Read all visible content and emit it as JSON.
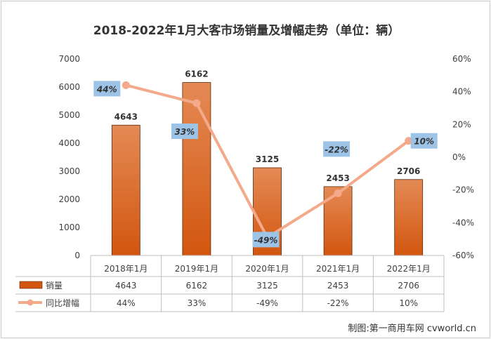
{
  "chart_data": {
    "type": "bar+line",
    "title": "2018-2022年1月大客市场销量及增幅走势（单位：辆）",
    "categories": [
      "2018年1月",
      "2019年1月",
      "2020年1月",
      "2021年1月",
      "2022年1月"
    ],
    "series": [
      {
        "name": "销量",
        "type": "bar",
        "axis": "left",
        "values": [
          4643,
          6162,
          3125,
          2453,
          2706
        ],
        "labels": [
          "4643",
          "6162",
          "3125",
          "2453",
          "2706"
        ],
        "color": "#D9601C"
      },
      {
        "name": "同比增幅",
        "type": "line",
        "axis": "right",
        "values": [
          44,
          33,
          -49,
          -22,
          10
        ],
        "labels": [
          "44%",
          "33%",
          "-49%",
          "-22%",
          "10%"
        ],
        "color": "#F4A98A"
      }
    ],
    "yleft": {
      "min": 0,
      "max": 7000,
      "ticks": [
        "0",
        "1000",
        "2000",
        "3000",
        "4000",
        "5000",
        "6000",
        "7000"
      ]
    },
    "yright": {
      "min": -60,
      "max": 60,
      "ticks": [
        "-60%",
        "-40%",
        "-20%",
        "0%",
        "20%",
        "40%",
        "60%"
      ]
    },
    "grid": false,
    "legend": "data-table"
  },
  "colors": {
    "bar_top": "#E48A55",
    "bar_bottom": "#D2560F",
    "bar_edge": "#5a2a0a",
    "line": "#F4A98A",
    "label_box": "#9DC3E6"
  },
  "credit": "制图:第一商用车网 cvworld.cn"
}
